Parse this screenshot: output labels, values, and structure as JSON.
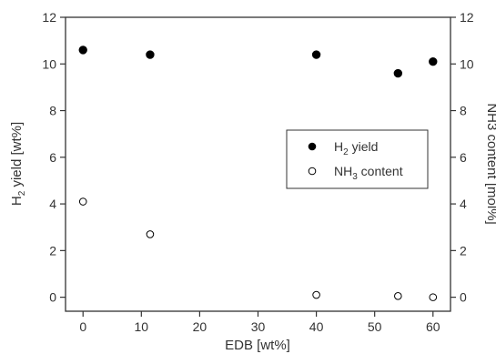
{
  "chart_data": {
    "type": "scatter",
    "x": [
      0,
      11.5,
      40,
      54,
      60
    ],
    "series": [
      {
        "name": "H2 yield",
        "axis": "left",
        "marker": "filled-circle",
        "y": [
          10.6,
          10.4,
          10.4,
          9.6,
          10.1
        ]
      },
      {
        "name": "NH3 content",
        "axis": "right",
        "marker": "open-circle",
        "y": [
          4.1,
          2.7,
          0.1,
          0.05,
          0.0
        ]
      }
    ],
    "xlabel": "EDB [wt%]",
    "ylabel_left": {
      "prefix": "H",
      "sub": "2",
      "suffix": " yield [wt%]"
    },
    "ylabel_right": "NH3 content [mol%]",
    "xlim": [
      -3,
      63
    ],
    "ylim": [
      -0.6,
      12
    ],
    "xticks": [
      0,
      10,
      20,
      30,
      40,
      50,
      60
    ],
    "yticks": [
      0,
      2,
      4,
      6,
      8,
      10,
      12
    ],
    "legend": {
      "placement": "center-right",
      "entries": [
        {
          "prefix": "H",
          "sub": "2",
          "suffix": " yield",
          "marker": "filled-circle"
        },
        {
          "prefix": "NH",
          "sub": "3",
          "suffix": " content",
          "marker": "open-circle"
        }
      ]
    },
    "grid": false,
    "colors": {
      "axis": "#333333",
      "marker": "#000000",
      "background": "#ffffff"
    }
  }
}
